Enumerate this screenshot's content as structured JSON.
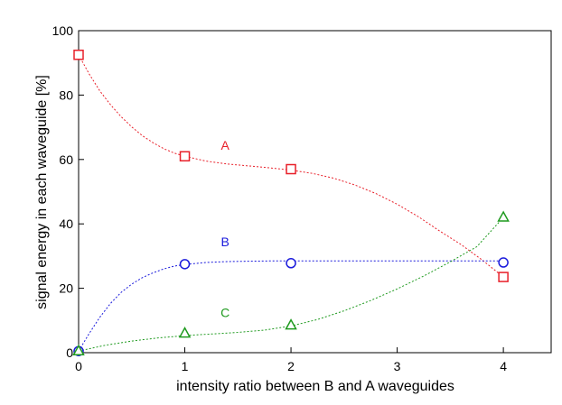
{
  "chart_data": {
    "type": "scatter",
    "title": "",
    "xlabel": "intensity ratio between B and A waveguides",
    "ylabel": "signal energy in each waveguide [%]",
    "xlim": [
      0,
      4.45
    ],
    "ylim": [
      0,
      100
    ],
    "xticks": [
      0,
      1,
      2,
      3,
      4
    ],
    "yticks": [
      0,
      20,
      40,
      60,
      80,
      100
    ],
    "grid": false,
    "legend": "none",
    "series": [
      {
        "name": "A",
        "color": "#e8202a",
        "marker": "square",
        "x": [
          0,
          1,
          2,
          4
        ],
        "y": [
          92.5,
          61,
          57,
          23.5
        ],
        "label_at": [
          1.38,
          63
        ],
        "fit": [
          [
            0,
            92.5
          ],
          [
            0.1,
            86.5
          ],
          [
            0.2,
            81.3
          ],
          [
            0.3,
            77.0
          ],
          [
            0.4,
            73.3
          ],
          [
            0.5,
            70.1
          ],
          [
            0.6,
            67.4
          ],
          [
            0.7,
            65.2
          ],
          [
            0.8,
            63.4
          ],
          [
            0.9,
            62.0
          ],
          [
            1.0,
            61.0
          ],
          [
            1.2,
            59.5
          ],
          [
            1.4,
            58.6
          ],
          [
            1.6,
            58.0
          ],
          [
            1.8,
            57.4
          ],
          [
            2.0,
            56.7
          ],
          [
            2.2,
            55.7
          ],
          [
            2.4,
            54.2
          ],
          [
            2.6,
            52.1
          ],
          [
            2.8,
            49.4
          ],
          [
            3.0,
            46.1
          ],
          [
            3.2,
            42.2
          ],
          [
            3.4,
            37.8
          ],
          [
            3.6,
            33.6
          ],
          [
            3.8,
            28.8
          ],
          [
            4.0,
            23.5
          ]
        ]
      },
      {
        "name": "B",
        "color": "#1a1adc",
        "marker": "circle",
        "x": [
          0,
          1,
          2,
          4
        ],
        "y": [
          0.5,
          27.5,
          27.8,
          28
        ],
        "label_at": [
          1.38,
          33
        ],
        "fit": [
          [
            0,
            0.5
          ],
          [
            0.1,
            6.0
          ],
          [
            0.2,
            11.0
          ],
          [
            0.3,
            15.3
          ],
          [
            0.4,
            18.7
          ],
          [
            0.5,
            21.3
          ],
          [
            0.6,
            23.3
          ],
          [
            0.7,
            24.8
          ],
          [
            0.8,
            26.0
          ],
          [
            0.9,
            26.9
          ],
          [
            1.0,
            27.4
          ],
          [
            1.2,
            28.0
          ],
          [
            1.4,
            28.3
          ],
          [
            1.6,
            28.4
          ],
          [
            1.8,
            28.5
          ],
          [
            2.0,
            28.5
          ],
          [
            2.5,
            28.5
          ],
          [
            3.0,
            28.5
          ],
          [
            3.5,
            28.5
          ],
          [
            4.0,
            28.5
          ]
        ]
      },
      {
        "name": "C",
        "color": "#1f9a1f",
        "marker": "triangle",
        "x": [
          0,
          1,
          2,
          4
        ],
        "y": [
          0.5,
          6,
          8.5,
          42
        ],
        "label_at": [
          1.38,
          11
        ],
        "fit": [
          [
            0,
            0.5
          ],
          [
            0.25,
            2.3
          ],
          [
            0.5,
            3.6
          ],
          [
            0.75,
            4.6
          ],
          [
            1.0,
            5.3
          ],
          [
            1.25,
            5.8
          ],
          [
            1.5,
            6.3
          ],
          [
            1.75,
            7.0
          ],
          [
            2.0,
            8.3
          ],
          [
            2.25,
            10.3
          ],
          [
            2.5,
            13.0
          ],
          [
            2.75,
            16.2
          ],
          [
            3.0,
            19.8
          ],
          [
            3.25,
            23.8
          ],
          [
            3.5,
            28.2
          ],
          [
            3.75,
            32.9
          ],
          [
            4.0,
            42.0
          ]
        ]
      }
    ]
  }
}
